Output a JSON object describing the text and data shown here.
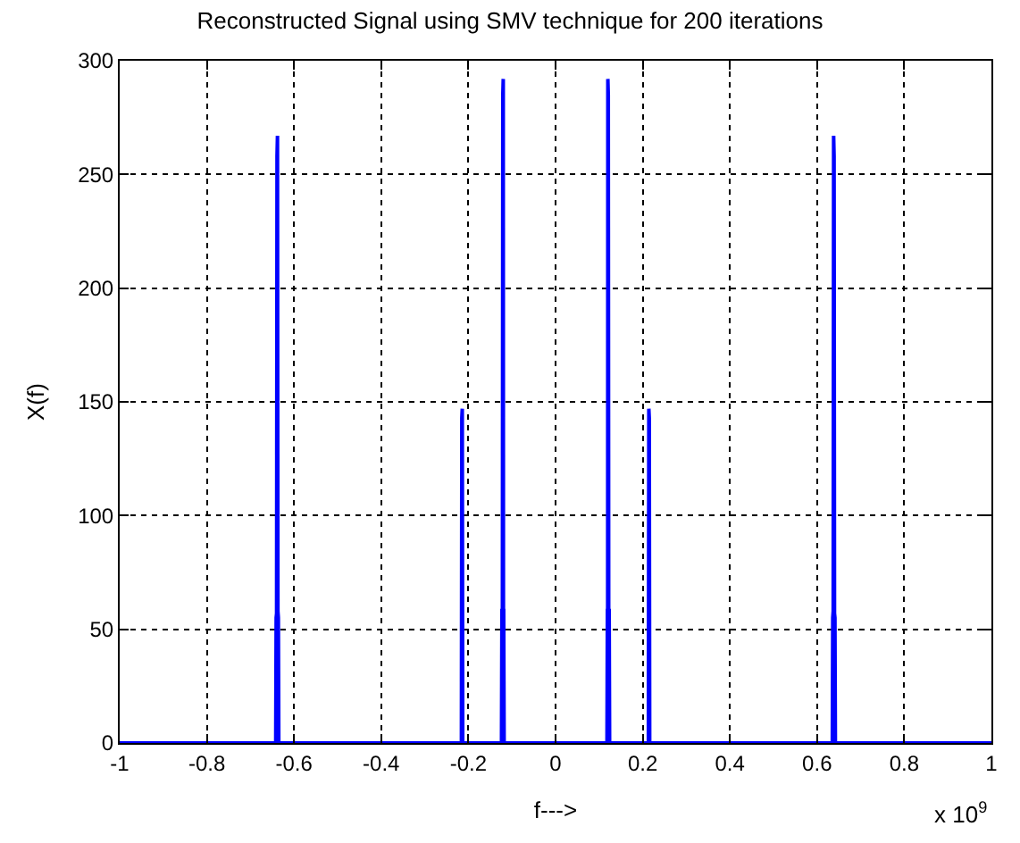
{
  "chart_data": {
    "type": "line",
    "title": "Reconstructed Signal using SMV technique for 200 iterations",
    "xlabel": "f--->",
    "ylabel": "X(f)",
    "annotations": [
      "x 10$^{9}$"
    ],
    "x": [
      -1,
      -0.642,
      -0.641,
      -0.64,
      -0.639,
      -0.638,
      -0.637,
      -0.636,
      -0.635,
      -0.216,
      -0.215,
      -0.214,
      -0.213,
      -0.124,
      -0.123,
      -0.122,
      -0.121,
      -0.12,
      -0.1195,
      -0.119,
      -0.118,
      0.118,
      0.119,
      0.1195,
      0.12,
      0.121,
      0.122,
      0.123,
      0.124,
      0.213,
      0.214,
      0.215,
      0.216,
      0.635,
      0.636,
      0.637,
      0.638,
      0.639,
      0.64,
      0.641,
      0.642,
      1
    ],
    "series": [
      {
        "color": "#0000ff",
        "values": [
          0,
          0,
          55,
          57,
          258,
          267,
          58,
          55,
          0,
          0,
          143,
          147,
          0,
          0,
          59,
          42,
          285,
          292,
          19,
          59,
          0,
          0,
          59,
          19,
          292,
          285,
          42,
          59,
          0,
          0,
          147,
          143,
          0,
          0,
          55,
          58,
          267,
          258,
          57,
          55,
          0,
          0
        ]
      }
    ],
    "xlim": [
      -1,
      1
    ],
    "xticks": [
      -1,
      -0.8,
      -0.6,
      -0.4,
      -0.2,
      0,
      0.2,
      0.4,
      0.6,
      0.8,
      1
    ],
    "ylim": [
      0,
      300
    ],
    "yticks": [
      0,
      50,
      100,
      150,
      200,
      250,
      300
    ],
    "grid": true,
    "marker": "none",
    "line_style": "solid"
  }
}
